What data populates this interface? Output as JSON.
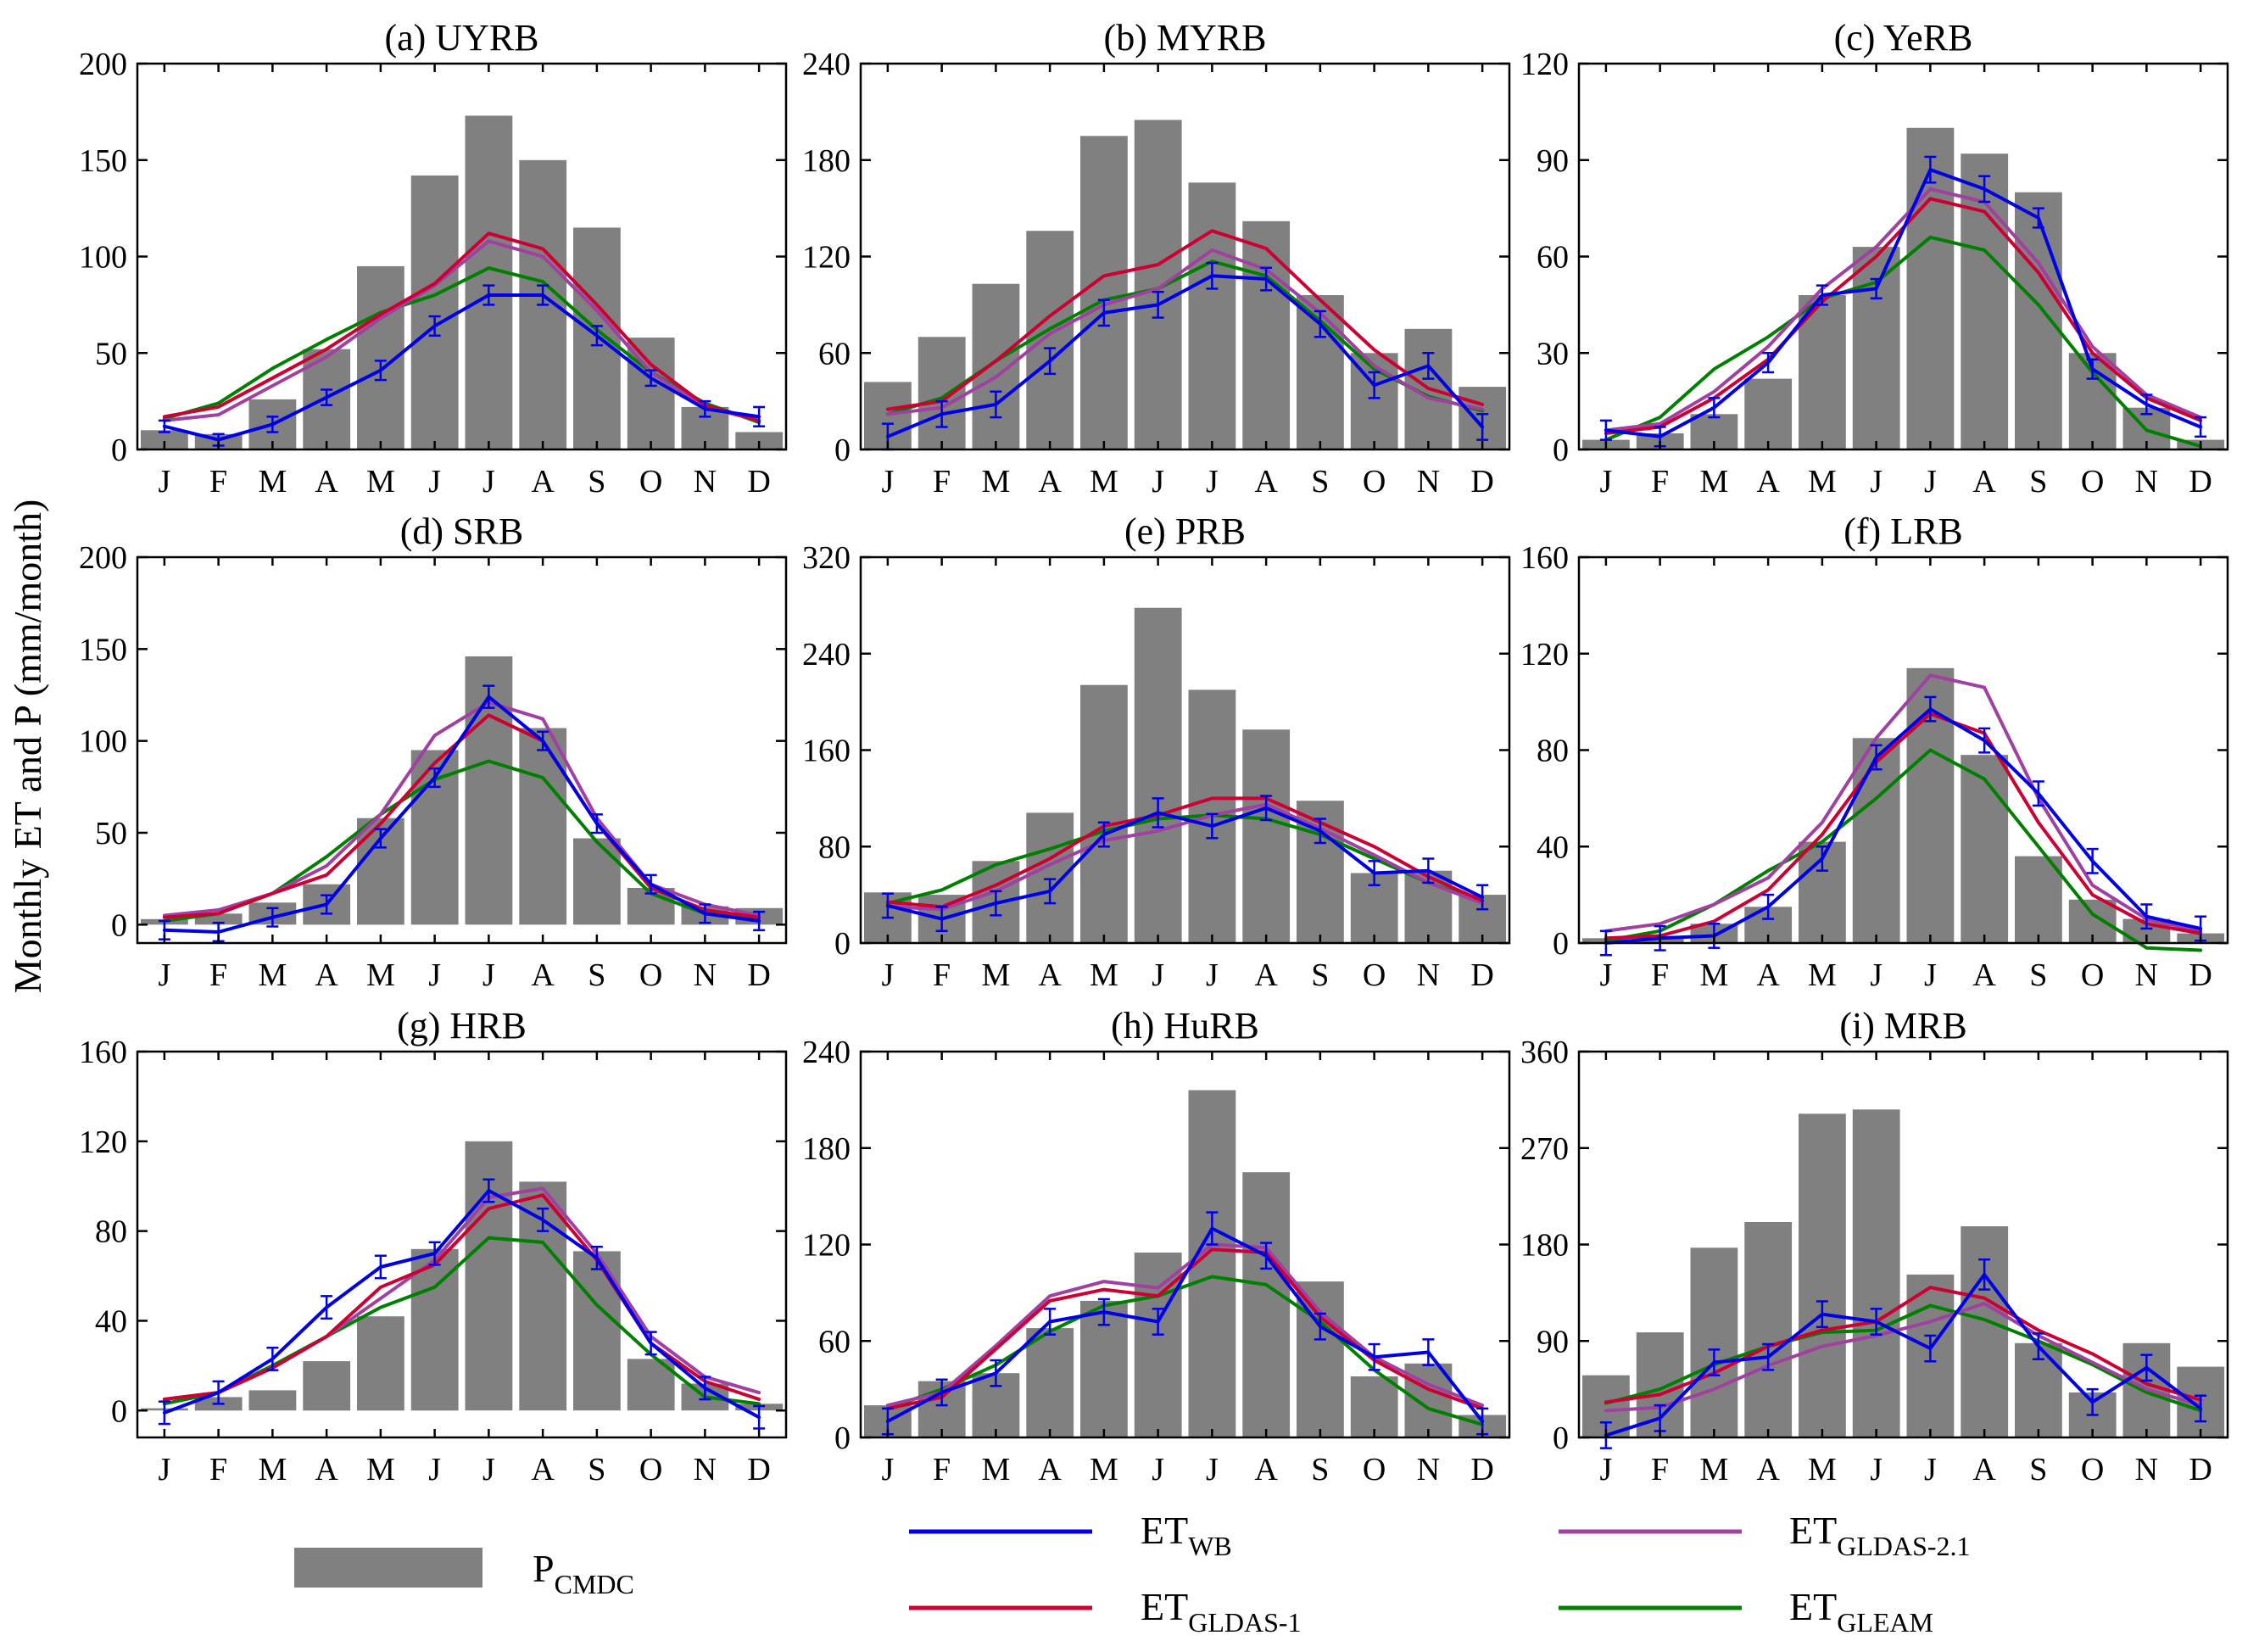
{
  "figure": {
    "ylabel": "Monthly ET and P (mm/month)"
  },
  "legend": {
    "items": [
      {
        "key": "P",
        "label": "P",
        "sub": "CMDC",
        "color": "#808080",
        "kind": "bar"
      },
      {
        "key": "ETWB",
        "label": "ET",
        "sub": "WB",
        "color": "#0000e6",
        "kind": "line"
      },
      {
        "key": "ETG1",
        "label": "ET",
        "sub": "GLDAS-1",
        "color": "#cc0033",
        "kind": "line"
      },
      {
        "key": "ETG21",
        "label": "ET",
        "sub": "GLDAS-2.1",
        "color": "#a040a0",
        "kind": "line"
      },
      {
        "key": "ETGLEAM",
        "label": "ET",
        "sub": "GLEAM",
        "color": "#008000",
        "kind": "line"
      }
    ]
  },
  "chart_data": [
    {
      "type": "bar+line",
      "title": "(a) UYRB",
      "categories": [
        "J",
        "F",
        "M",
        "A",
        "M",
        "J",
        "J",
        "A",
        "S",
        "O",
        "N",
        "D"
      ],
      "ylim": [
        0,
        200
      ],
      "yticks": [
        0,
        50,
        100,
        150,
        200
      ],
      "bars": [
        10,
        8,
        26,
        52,
        95,
        142,
        173,
        150,
        115,
        58,
        22,
        9
      ],
      "series": [
        {
          "name": "ET_WB",
          "values": [
            12,
            5,
            13,
            27,
            41,
            64,
            80,
            80,
            59,
            37,
            21,
            17
          ],
          "err": [
            3,
            3,
            4,
            4,
            5,
            5,
            5,
            5,
            5,
            4,
            4,
            5
          ]
        },
        {
          "name": "ET_GLDAS-1",
          "values": [
            17,
            22,
            37,
            52,
            70,
            86,
            112,
            104,
            75,
            44,
            23,
            15
          ]
        },
        {
          "name": "ET_GLDAS-2.1",
          "values": [
            15,
            18,
            33,
            48,
            68,
            85,
            108,
            100,
            72,
            40,
            22,
            15
          ]
        },
        {
          "name": "ET_GLEAM",
          "values": [
            16,
            24,
            42,
            57,
            71,
            80,
            94,
            87,
            62,
            40,
            24,
            14
          ]
        }
      ]
    },
    {
      "type": "bar+line",
      "title": "(b) MYRB",
      "categories": [
        "J",
        "F",
        "M",
        "A",
        "M",
        "J",
        "J",
        "A",
        "S",
        "O",
        "N",
        "D"
      ],
      "ylim": [
        0,
        240
      ],
      "yticks": [
        0,
        60,
        120,
        180,
        240
      ],
      "bars": [
        42,
        70,
        103,
        136,
        195,
        205,
        166,
        142,
        96,
        60,
        75,
        39
      ],
      "series": [
        {
          "name": "ET_WB",
          "values": [
            8,
            22,
            28,
            55,
            85,
            90,
            108,
            106,
            78,
            40,
            52,
            14
          ],
          "err": [
            8,
            8,
            8,
            8,
            8,
            8,
            8,
            7,
            8,
            8,
            8,
            8
          ]
        },
        {
          "name": "ET_GLDAS-1",
          "values": [
            25,
            30,
            55,
            83,
            108,
            115,
            136,
            125,
            93,
            62,
            38,
            28
          ]
        },
        {
          "name": "ET_GLDAS-2.1",
          "values": [
            22,
            26,
            45,
            72,
            90,
            100,
            124,
            112,
            85,
            52,
            32,
            25
          ]
        },
        {
          "name": "ET_GLEAM",
          "values": [
            22,
            32,
            55,
            75,
            93,
            100,
            117,
            108,
            80,
            50,
            33,
            24
          ]
        }
      ]
    },
    {
      "type": "bar+line",
      "title": "(c) YeRB",
      "categories": [
        "J",
        "F",
        "M",
        "A",
        "M",
        "J",
        "J",
        "A",
        "S",
        "O",
        "N",
        "D"
      ],
      "ylim": [
        0,
        120
      ],
      "yticks": [
        0,
        30,
        60,
        90,
        120
      ],
      "bars": [
        3,
        5,
        11,
        22,
        48,
        63,
        100,
        92,
        80,
        30,
        13,
        3
      ],
      "series": [
        {
          "name": "ET_WB",
          "values": [
            6,
            4,
            13,
            27,
            48,
            50,
            87,
            81,
            72,
            25,
            14,
            7
          ],
          "err": [
            3,
            3,
            3,
            3,
            3,
            3,
            4,
            4,
            3,
            3,
            3,
            3
          ]
        },
        {
          "name": "ET_GLDAS-1",
          "values": [
            5,
            7,
            16,
            28,
            46,
            60,
            78,
            74,
            55,
            30,
            16,
            9
          ]
        },
        {
          "name": "ET_GLDAS-2.1",
          "values": [
            6,
            8,
            18,
            32,
            50,
            63,
            81,
            77,
            58,
            32,
            17,
            10
          ]
        },
        {
          "name": "ET_GLEAM",
          "values": [
            3,
            10,
            25,
            35,
            47,
            52,
            66,
            62,
            45,
            24,
            6,
            1
          ]
        }
      ]
    },
    {
      "type": "bar+line",
      "title": "(d) SRB",
      "categories": [
        "J",
        "F",
        "M",
        "A",
        "M",
        "J",
        "J",
        "A",
        "S",
        "O",
        "N",
        "D"
      ],
      "ylim": [
        -10,
        200
      ],
      "yticks": [
        0,
        50,
        100,
        150,
        200
      ],
      "bars": [
        3,
        6,
        12,
        22,
        58,
        95,
        146,
        107,
        47,
        20,
        10,
        9
      ],
      "series": [
        {
          "name": "ET_WB",
          "values": [
            -3,
            -4,
            4,
            11,
            47,
            80,
            124,
            100,
            55,
            22,
            6,
            2
          ],
          "err": [
            5,
            5,
            5,
            5,
            5,
            5,
            6,
            5,
            5,
            5,
            5,
            5
          ]
        },
        {
          "name": "ET_GLDAS-1",
          "values": [
            4,
            6,
            17,
            27,
            55,
            88,
            114,
            100,
            55,
            20,
            8,
            4
          ]
        },
        {
          "name": "ET_GLDAS-2.1",
          "values": [
            5,
            8,
            17,
            32,
            60,
            103,
            121,
            112,
            58,
            22,
            11,
            5
          ]
        },
        {
          "name": "ET_GLEAM",
          "values": [
            2,
            6,
            17,
            37,
            60,
            79,
            89,
            80,
            45,
            17,
            6,
            4
          ]
        }
      ]
    },
    {
      "type": "bar+line",
      "title": "(e) PRB",
      "categories": [
        "J",
        "F",
        "M",
        "A",
        "M",
        "J",
        "J",
        "A",
        "S",
        "O",
        "N",
        "D"
      ],
      "ylim": [
        0,
        320
      ],
      "yticks": [
        0,
        80,
        160,
        240,
        320
      ],
      "bars": [
        42,
        40,
        68,
        108,
        214,
        278,
        210,
        177,
        118,
        58,
        60,
        40
      ],
      "series": [
        {
          "name": "ET_WB",
          "values": [
            31,
            20,
            33,
            43,
            90,
            108,
            97,
            112,
            93,
            58,
            60,
            38
          ],
          "err": [
            10,
            10,
            10,
            10,
            10,
            12,
            10,
            10,
            10,
            10,
            10,
            10
          ]
        },
        {
          "name": "ET_GLDAS-1",
          "values": [
            34,
            30,
            48,
            70,
            97,
            106,
            120,
            120,
            100,
            80,
            55,
            35
          ]
        },
        {
          "name": "ET_GLDAS-2.1",
          "values": [
            30,
            28,
            43,
            65,
            85,
            93,
            106,
            115,
            95,
            73,
            50,
            33
          ]
        },
        {
          "name": "ET_GLEAM",
          "values": [
            33,
            44,
            65,
            78,
            93,
            103,
            106,
            103,
            90,
            70,
            50,
            35
          ]
        }
      ]
    },
    {
      "type": "bar+line",
      "title": "(f) LRB",
      "categories": [
        "J",
        "F",
        "M",
        "A",
        "M",
        "J",
        "J",
        "A",
        "S",
        "O",
        "N",
        "D"
      ],
      "ylim": [
        0,
        160
      ],
      "yticks": [
        0,
        40,
        80,
        120,
        160
      ],
      "bars": [
        2,
        3,
        8,
        15,
        42,
        85,
        114,
        78,
        36,
        18,
        10,
        4
      ],
      "series": [
        {
          "name": "ET_WB",
          "values": [
            0,
            2,
            3,
            15,
            35,
            77,
            97,
            84,
            62,
            34,
            11,
            6
          ],
          "err": [
            5,
            5,
            5,
            5,
            5,
            5,
            5,
            5,
            5,
            5,
            5,
            5
          ]
        },
        {
          "name": "ET_GLDAS-1",
          "values": [
            2,
            3,
            9,
            22,
            45,
            75,
            95,
            87,
            50,
            20,
            8,
            4
          ]
        },
        {
          "name": "ET_GLDAS-2.1",
          "values": [
            5,
            8,
            16,
            27,
            50,
            85,
            111,
            106,
            60,
            24,
            10,
            5
          ]
        },
        {
          "name": "ET_GLEAM",
          "values": [
            1,
            5,
            16,
            30,
            42,
            60,
            80,
            68,
            40,
            12,
            -2,
            -3
          ]
        }
      ]
    },
    {
      "type": "bar+line",
      "title": "(g) HRB",
      "categories": [
        "J",
        "F",
        "M",
        "A",
        "M",
        "J",
        "J",
        "A",
        "S",
        "O",
        "N",
        "D"
      ],
      "ylim": [
        -12,
        160
      ],
      "yticks": [
        0,
        40,
        80,
        120,
        160
      ],
      "bars": [
        1,
        6,
        9,
        22,
        42,
        72,
        120,
        102,
        71,
        23,
        12,
        3
      ],
      "series": [
        {
          "name": "ET_WB",
          "values": [
            -1,
            8,
            23,
            46,
            64,
            70,
            98,
            85,
            68,
            30,
            10,
            -3
          ],
          "err": [
            5,
            5,
            5,
            5,
            5,
            5,
            5,
            5,
            5,
            5,
            5,
            5
          ]
        },
        {
          "name": "ET_GLDAS-1",
          "values": [
            5,
            8,
            19,
            33,
            55,
            65,
            90,
            96,
            67,
            30,
            13,
            5
          ]
        },
        {
          "name": "ET_GLDAS-2.1",
          "values": [
            5,
            8,
            19,
            33,
            50,
            67,
            95,
            99,
            70,
            33,
            15,
            8
          ]
        },
        {
          "name": "ET_GLEAM",
          "values": [
            3,
            8,
            20,
            33,
            46,
            55,
            77,
            75,
            47,
            25,
            6,
            3
          ]
        }
      ]
    },
    {
      "type": "bar+line",
      "title": "(h) HuRB",
      "categories": [
        "J",
        "F",
        "M",
        "A",
        "M",
        "J",
        "J",
        "A",
        "S",
        "O",
        "N",
        "D"
      ],
      "ylim": [
        0,
        240
      ],
      "yticks": [
        0,
        60,
        120,
        180,
        240
      ],
      "bars": [
        20,
        35,
        40,
        68,
        85,
        115,
        216,
        165,
        97,
        38,
        46,
        14
      ],
      "series": [
        {
          "name": "ET_WB",
          "values": [
            10,
            28,
            40,
            72,
            78,
            72,
            130,
            113,
            69,
            50,
            53,
            10
          ],
          "err": [
            8,
            8,
            8,
            8,
            8,
            8,
            10,
            8,
            8,
            8,
            8,
            8
          ]
        },
        {
          "name": "ET_GLDAS-1",
          "values": [
            18,
            25,
            55,
            85,
            92,
            88,
            117,
            115,
            75,
            48,
            30,
            18
          ]
        },
        {
          "name": "ET_GLDAS-2.1",
          "values": [
            20,
            28,
            57,
            88,
            97,
            93,
            120,
            118,
            78,
            50,
            33,
            20
          ]
        },
        {
          "name": "ET_GLEAM",
          "values": [
            18,
            30,
            45,
            66,
            82,
            88,
            100,
            95,
            72,
            42,
            18,
            8
          ]
        }
      ]
    },
    {
      "type": "bar+line",
      "title": "(i) MRB",
      "categories": [
        "J",
        "F",
        "M",
        "A",
        "M",
        "J",
        "J",
        "A",
        "S",
        "O",
        "N",
        "D"
      ],
      "ylim": [
        0,
        360
      ],
      "yticks": [
        0,
        90,
        180,
        270,
        360
      ],
      "bars": [
        58,
        98,
        177,
        201,
        302,
        306,
        152,
        197,
        88,
        42,
        88,
        66
      ],
      "series": [
        {
          "name": "ET_WB",
          "values": [
            2,
            18,
            70,
            75,
            115,
            108,
            83,
            152,
            85,
            33,
            65,
            27
          ],
          "err": [
            12,
            12,
            12,
            12,
            12,
            12,
            12,
            14,
            12,
            12,
            12,
            12
          ]
        },
        {
          "name": "ET_GLDAS-1",
          "values": [
            33,
            40,
            60,
            85,
            100,
            108,
            140,
            130,
            100,
            78,
            50,
            35
          ]
        },
        {
          "name": "ET_GLDAS-2.1",
          "values": [
            25,
            28,
            45,
            67,
            85,
            95,
            108,
            125,
            95,
            70,
            45,
            30
          ]
        },
        {
          "name": "ET_GLEAM",
          "values": [
            32,
            45,
            68,
            85,
            98,
            100,
            123,
            110,
            90,
            68,
            42,
            25
          ]
        }
      ]
    }
  ]
}
